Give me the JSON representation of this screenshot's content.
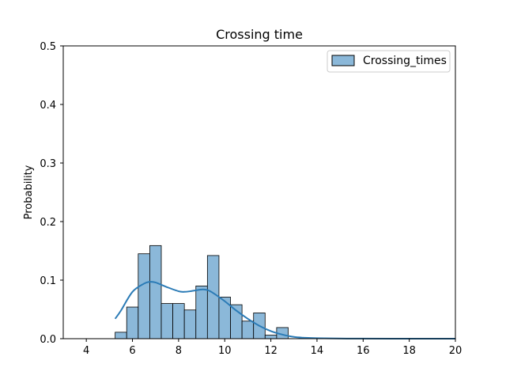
{
  "chart_data": {
    "type": "bar",
    "title": "Crossing time",
    "xlabel": "",
    "ylabel": "Probability",
    "xlim": [
      3,
      20
    ],
    "ylim": [
      0,
      0.5
    ],
    "xticks": [
      4,
      6,
      8,
      10,
      12,
      14,
      16,
      18,
      20
    ],
    "yticks": [
      0.0,
      0.1,
      0.2,
      0.3,
      0.4,
      0.5
    ],
    "legend_position": "top-right",
    "grid": false,
    "colors": {
      "bar_fill": "#8bb8d9",
      "bar_edge": "#000000",
      "kde_line": "#2b7bb6"
    },
    "series": [
      {
        "name": "Crossing_times",
        "bin_start": 5.25,
        "bin_width": 0.5,
        "values": [
          0.011,
          0.054,
          0.145,
          0.159,
          0.06,
          0.06,
          0.049,
          0.09,
          0.142,
          0.071,
          0.058,
          0.03,
          0.044,
          0.006,
          0.019
        ]
      }
    ],
    "kde": {
      "x": [
        5.25,
        5.5,
        6.0,
        6.5,
        6.75,
        7.0,
        7.5,
        8.0,
        8.25,
        8.5,
        9.0,
        9.25,
        9.5,
        10.0,
        10.5,
        11.0,
        11.5,
        12.0,
        12.5,
        13.0,
        13.5,
        14.0,
        15.0,
        16.0,
        18.0,
        20.0
      ],
      "y": [
        0.034,
        0.048,
        0.08,
        0.094,
        0.097,
        0.096,
        0.088,
        0.081,
        0.08,
        0.081,
        0.084,
        0.083,
        0.078,
        0.064,
        0.048,
        0.034,
        0.022,
        0.013,
        0.007,
        0.003,
        0.0015,
        0.0008,
        0.0003,
        0.0001,
        0.0,
        0.0
      ]
    }
  }
}
